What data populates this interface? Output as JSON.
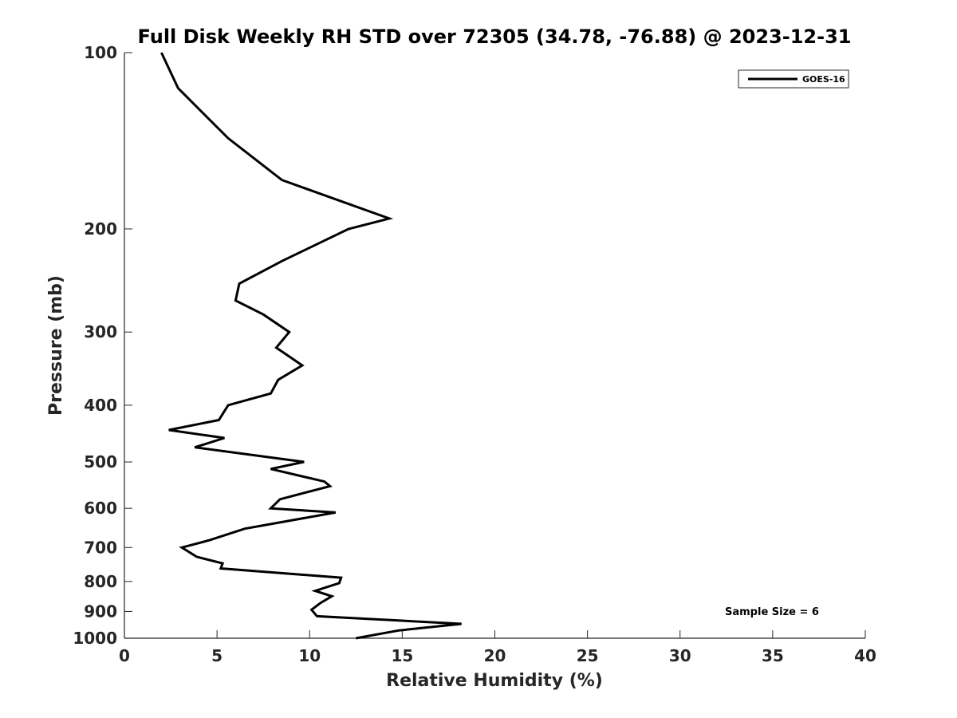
{
  "chart_data": {
    "type": "line",
    "title": "Full Disk Weekly RH STD over 72305 (34.78, -76.88) @ 2023-12-31",
    "xlabel": "Relative Humidity (%)",
    "ylabel": "Pressure (mb)",
    "xlim": [
      0,
      40
    ],
    "ylim": [
      100,
      1000
    ],
    "y_scale": "log",
    "y_reversed": true,
    "grid": false,
    "legend_position": "top-right",
    "x_ticks": [
      0,
      5,
      10,
      15,
      20,
      25,
      30,
      35,
      40
    ],
    "y_ticks": [
      100,
      200,
      300,
      400,
      500,
      600,
      700,
      800,
      900,
      1000
    ],
    "series": [
      {
        "name": "GOES-16",
        "color": "#000000",
        "x": [
          2.0,
          2.9,
          5.6,
          8.5,
          14.3,
          12.1,
          8.5,
          6.2,
          6.0,
          7.5,
          8.9,
          8.2,
          9.6,
          8.3,
          7.9,
          5.6,
          5.1,
          2.4,
          5.4,
          3.8,
          9.7,
          7.9,
          10.8,
          11.1,
          8.4,
          7.9,
          11.4,
          6.5,
          4.6,
          3.1,
          3.9,
          5.3,
          5.2,
          11.7,
          11.6,
          10.3,
          11.2,
          10.6,
          10.1,
          10.4,
          18.2,
          14.8,
          12.5
        ],
        "y": [
          100,
          115,
          140,
          165,
          192,
          200,
          227,
          248,
          265,
          280,
          300,
          319,
          342,
          362,
          382,
          400,
          424,
          441,
          455,
          472,
          500,
          514,
          540,
          550,
          579,
          600,
          610,
          650,
          680,
          700,
          726,
          745,
          760,
          788,
          805,
          830,
          848,
          870,
          894,
          917,
          945,
          970,
          1000
        ]
      }
    ],
    "annotations": [
      "Sample Size = 6"
    ]
  }
}
